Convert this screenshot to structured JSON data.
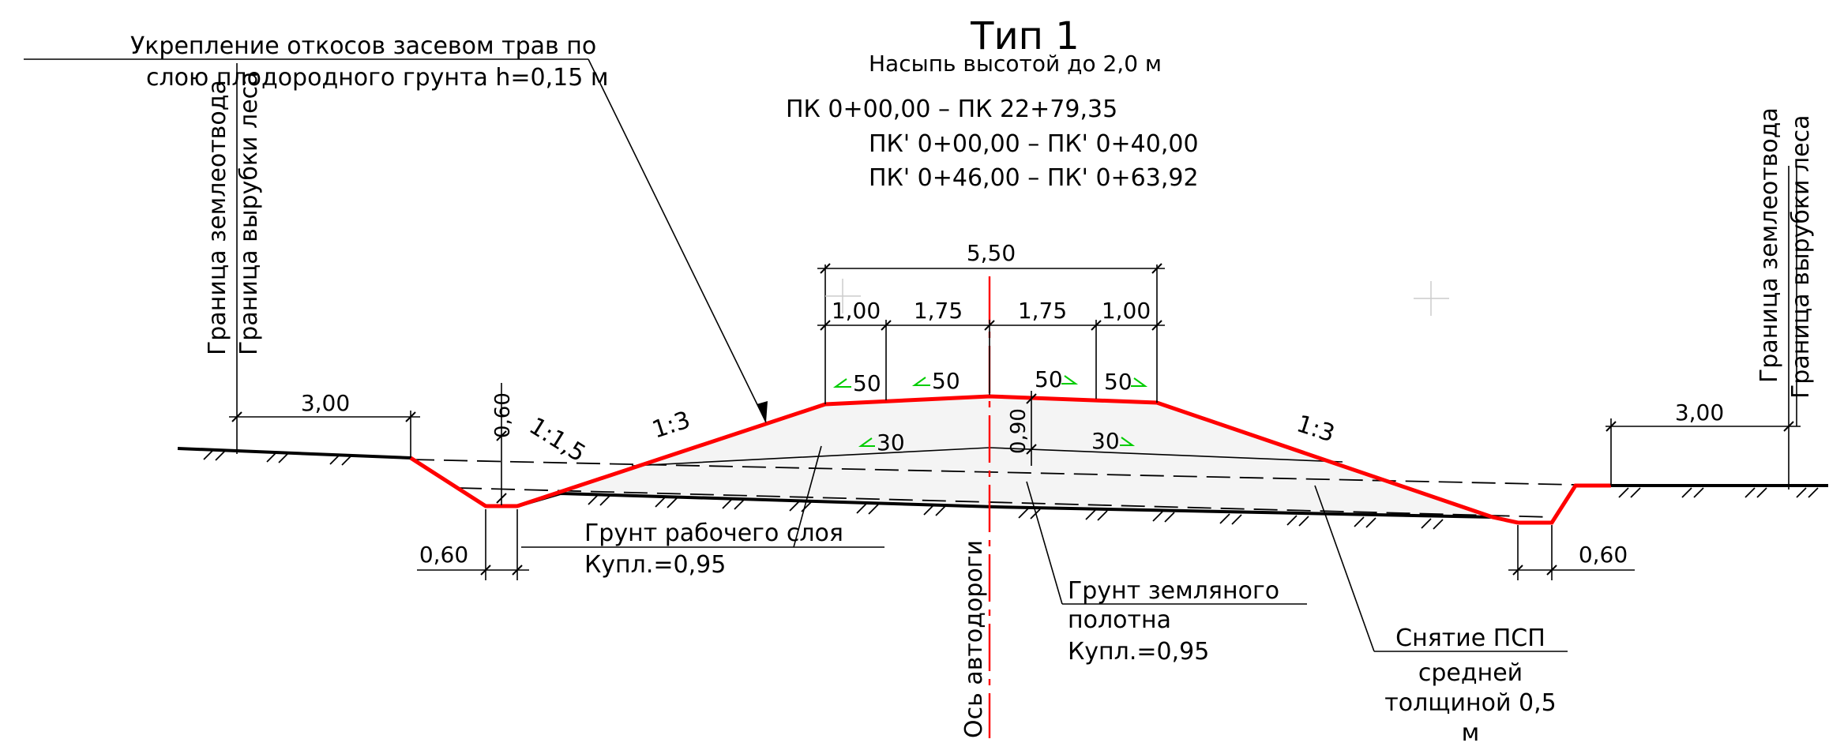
{
  "title": "Тип 1",
  "subtitle": "Насыпь высотой до 2,0 м",
  "stations": [
    "ПК 0+00,00 – ПК 22+79,35",
    "ПК' 0+00,00 – ПК' 0+40,00",
    "ПК' 0+46,00 – ПК' 0+63,92"
  ],
  "slope_note": {
    "line1": "Укрепление откосов засевом трав по",
    "line2": "слою плодородного грунта h=0,15 м"
  },
  "left_labels": {
    "boundary_land": "Граница землеотвода",
    "boundary_clearing": "Граница вырубки леса"
  },
  "right_labels": {
    "boundary_land": "Граница землеотвода",
    "boundary_clearing": "Граница вырубки леса"
  },
  "axis_label": "Ось автодороги",
  "dimensions": {
    "total_top": "5,50",
    "shoulder_left": "1,00",
    "lane_left": "1,75",
    "lane_right": "1,75",
    "shoulder_right": "1,00",
    "left_berm": "3,00",
    "right_berm": "3,00",
    "ditch_depth": "0,60",
    "left_ditch_bottom": "0,60",
    "right_ditch_bottom": "0,60",
    "height_center": "0,90"
  },
  "slopes": {
    "cross_left_outer": "50",
    "cross_left_inner": "50",
    "cross_right_inner": "50",
    "cross_right_outer": "50",
    "subgrade_left": "30",
    "subgrade_right": "30",
    "embankment_left": "1:3",
    "embankment_right": "1:3",
    "ditch_left": "1:1,5"
  },
  "callouts": {
    "working_layer": {
      "line1": "Грунт рабочего слоя",
      "line2": "Купл.=0,95"
    },
    "embankment": {
      "line1": "Грунт земляного",
      "line2": "полотна",
      "line3": "Купл.=0,95"
    },
    "topsoil": {
      "line1": "Снятие ПСП",
      "line2": "средней",
      "line3": "толщиной 0,5",
      "line4": "м"
    }
  },
  "colors": {
    "profile": "#ff0000",
    "slope_arrows": "#00cc00",
    "lines": "#000000"
  }
}
